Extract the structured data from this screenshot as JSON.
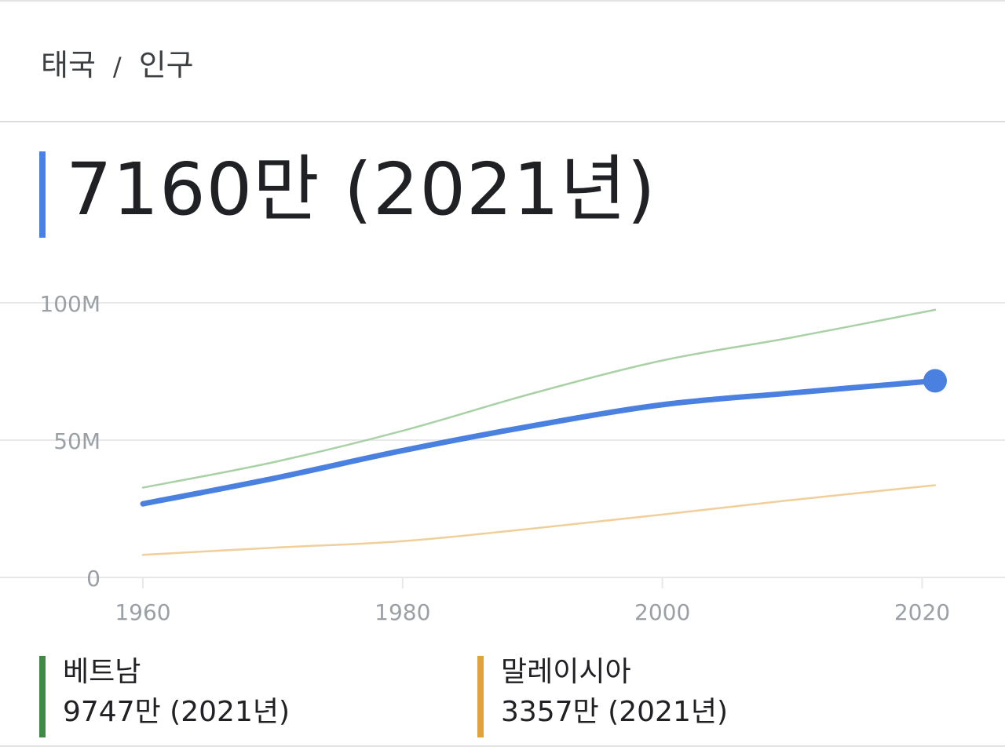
{
  "breadcrumb": {
    "country": "태국",
    "separator": "/",
    "topic": "인구"
  },
  "headline": {
    "value": "7160만 (2021년)"
  },
  "colors": {
    "main": "#4a80e0",
    "vietnam": "#3f8a46",
    "vietnam_line": "#a8d2a5",
    "malaysia": "#e0a23f",
    "malaysia_line": "#f0cf9a",
    "grid": "#e8e8e8",
    "tick": "#9aa0a6"
  },
  "legend": [
    {
      "name": "베트남",
      "value": "9747만 (2021년)"
    },
    {
      "name": "말레이시아",
      "value": "3357만 (2021년)"
    }
  ],
  "chart_data": {
    "type": "line",
    "x_ticks": [
      "1960",
      "1980",
      "2000",
      "2020"
    ],
    "y_ticks": [
      "0",
      "50M",
      "100M"
    ],
    "xlim": [
      1960,
      2021
    ],
    "ylim": [
      0,
      100
    ],
    "y_unit": "M",
    "grid": true,
    "series": [
      {
        "name": "태국",
        "color": "#4a80e0",
        "highlight": true,
        "x": [
          1960,
          1970,
          1980,
          1990,
          2000,
          2010,
          2021
        ],
        "values": [
          26.8,
          36.0,
          46.2,
          55.2,
          62.9,
          67.2,
          71.6
        ]
      },
      {
        "name": "베트남",
        "color": "#a8d2a5",
        "highlight": false,
        "x": [
          1960,
          1970,
          1980,
          1990,
          2000,
          2010,
          2021
        ],
        "values": [
          32.7,
          41.9,
          53.4,
          67.0,
          79.0,
          87.4,
          97.47
        ]
      },
      {
        "name": "말레이시아",
        "color": "#f0cf9a",
        "highlight": false,
        "x": [
          1960,
          1970,
          1980,
          1990,
          2000,
          2010,
          2021
        ],
        "values": [
          8.2,
          10.8,
          13.2,
          17.8,
          22.9,
          28.2,
          33.57
        ]
      }
    ]
  }
}
